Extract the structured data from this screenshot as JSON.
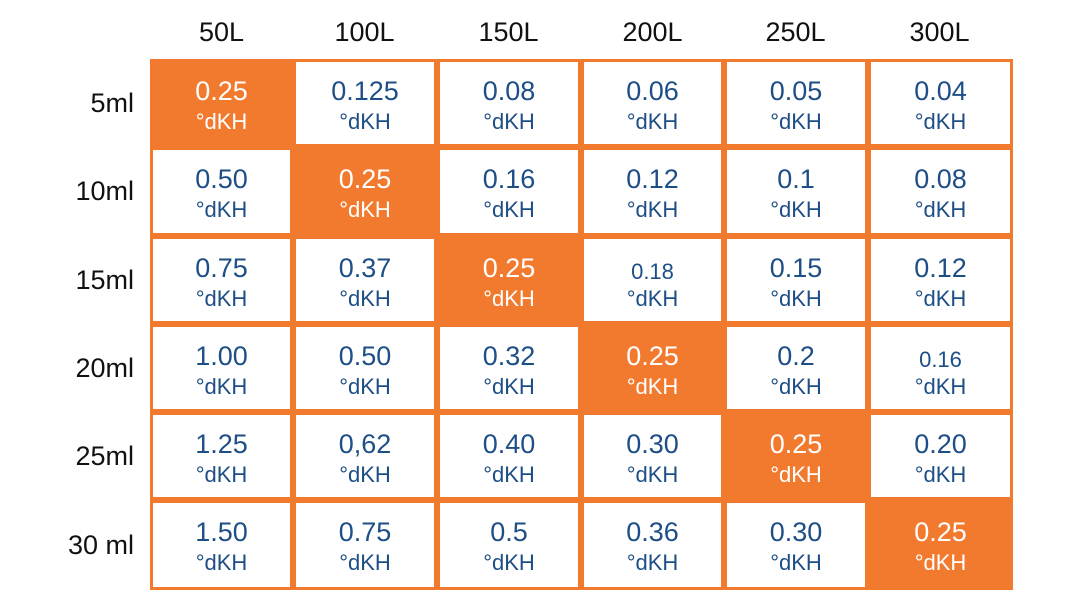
{
  "chart_data": {
    "type": "table",
    "title": "",
    "columns": [
      "50L",
      "100L",
      "150L",
      "200L",
      "250L",
      "300L"
    ],
    "rows": [
      "5ml",
      "10ml",
      "15ml",
      "20ml",
      "25ml",
      "30 ml"
    ],
    "unit": "°dKH",
    "values": [
      [
        "0.25",
        "0.125",
        "0.08",
        "0.06",
        "0.05",
        "0.04"
      ],
      [
        "0.50",
        "0.25",
        "0.16",
        "0.12",
        "0.1",
        "0.08"
      ],
      [
        "0.75",
        "0.37",
        "0.25",
        "0.18",
        "0.15",
        "0.12"
      ],
      [
        "1.00",
        "0.50",
        "0.32",
        "0.25",
        "0.2",
        "0.16"
      ],
      [
        "1.25",
        "0,62",
        "0.40",
        "0.30",
        "0.25",
        "0.20"
      ],
      [
        "1.50",
        "0.75",
        "0.5",
        "0.36",
        "0.30",
        "0.25"
      ]
    ],
    "highlighted_cells": [
      [
        0,
        0
      ],
      [
        1,
        1
      ],
      [
        2,
        2
      ],
      [
        3,
        3
      ],
      [
        4,
        4
      ],
      [
        5,
        5
      ]
    ],
    "small_value_cells": [
      [
        2,
        3
      ],
      [
        3,
        5
      ]
    ]
  },
  "colors": {
    "accent": "#f27a2e",
    "value_text": "#1d4e86",
    "highlight_text": "#ffffff",
    "header_text": "#111111"
  }
}
